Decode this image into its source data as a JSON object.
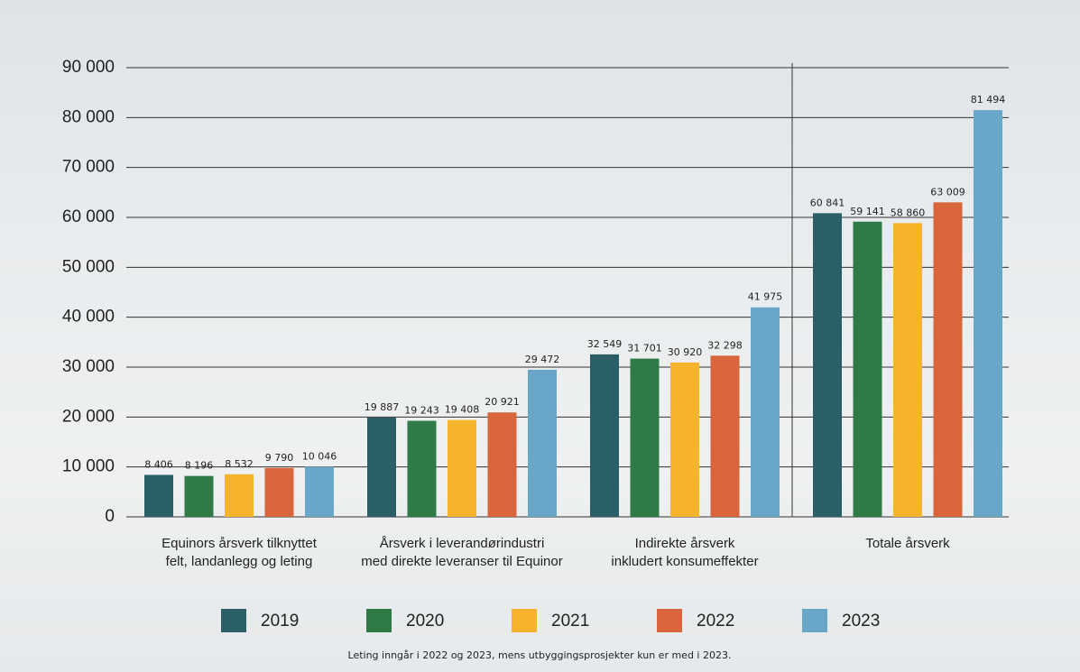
{
  "chart_data": {
    "type": "bar",
    "categories": [
      "Equinors årsverk tilknyttet\nfelt, landanlegg og leting",
      "Årsverk i leverandørindustri\nmed direkte leveranser til Equinor",
      "Indirekte årsverk\ninkludert konsumeffekter",
      "Totale årsverk"
    ],
    "series": [
      {
        "name": "2019",
        "color": "#2a5f68",
        "values": [
          8406,
          19887,
          32549,
          60841
        ],
        "value_labels": [
          "8 406",
          "19 887",
          "32 549",
          "60 841"
        ]
      },
      {
        "name": "2020",
        "color": "#2f7a46",
        "values": [
          8196,
          19243,
          31701,
          59141
        ],
        "value_labels": [
          "8 196",
          "19 243",
          "31 701",
          "59 141"
        ]
      },
      {
        "name": "2021",
        "color": "#f6b42d",
        "values": [
          8532,
          19408,
          30920,
          58860
        ],
        "value_labels": [
          "8 532",
          "19 408",
          "30 920",
          "58 860"
        ]
      },
      {
        "name": "2022",
        "color": "#d8653b",
        "values": [
          9790,
          20921,
          32298,
          63009
        ],
        "value_labels": [
          "9 790",
          "20 921",
          "32 298",
          "63 009"
        ]
      },
      {
        "name": "2023",
        "color": "#6aa6c8",
        "values": [
          10046,
          29472,
          41975,
          81494
        ],
        "value_labels": [
          "10 046",
          "29 472",
          "41 975",
          "81 494"
        ]
      }
    ],
    "ylim": [
      0,
      90000
    ],
    "yticks": [
      0,
      {
        "value": 10000,
        "label": "10 000"
      },
      {
        "value": 20000,
        "label": "20 000"
      },
      {
        "value": 30000,
        "label": "30 000"
      },
      {
        "value": 40000,
        "label": "40 000"
      },
      {
        "value": 50000,
        "label": "50 000"
      },
      {
        "value": 60000,
        "label": "60 000"
      },
      {
        "value": 70000,
        "label": "70 000"
      },
      {
        "value": 80000,
        "label": "80 000"
      },
      {
        "value": 90000,
        "label": "90 000"
      }
    ],
    "grid": true,
    "footnote": "Leting inngår i 2022 og 2023, mens utbyggingsprosjekter kun er med i 2023."
  }
}
